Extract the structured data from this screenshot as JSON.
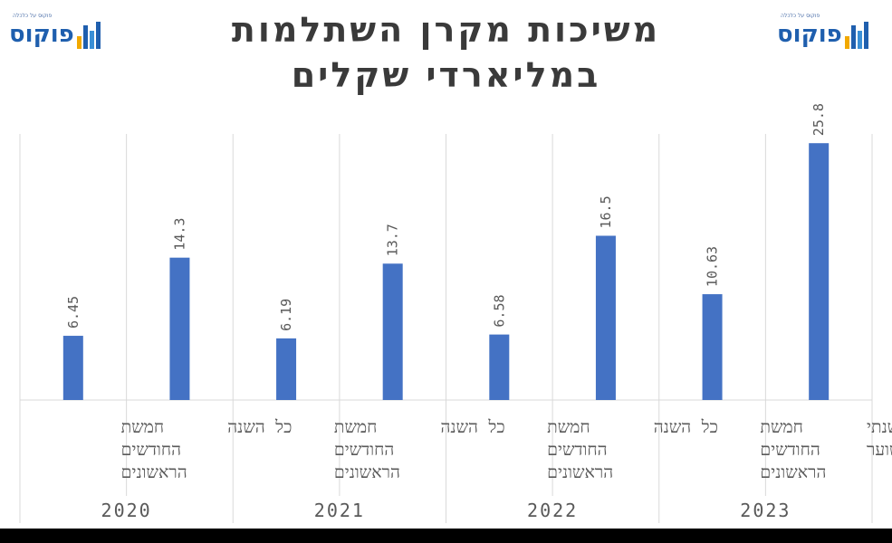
{
  "title": "משיכות מקרן השתלמות במליארדי שקלים",
  "logo": {
    "text": "פוקוס",
    "tagline": "פוקוס על כלכלה"
  },
  "colors": {
    "bar": "#4472c4",
    "title": "#3a3a3a",
    "gridline": "#d9d9d9",
    "logo": "#1f5fae"
  },
  "chart_data": {
    "type": "bar",
    "orientation": "vertical",
    "direction": "rtl",
    "ylim": [
      0,
      30
    ],
    "grid": false,
    "legend": "none",
    "groups": [
      {
        "year": "2023",
        "items": [
          {
            "label_lines": [
              "קצב שנתי",
              "משוער"
            ],
            "value": 25.8,
            "value_label": "25.8"
          },
          {
            "label_lines": [
              "חמשת",
              "החודשים",
              "הראשונים"
            ],
            "value": 10.63,
            "value_label": "10.63"
          }
        ]
      },
      {
        "year": "2022",
        "items": [
          {
            "label_lines": [
              "כל השנה"
            ],
            "value": 16.5,
            "value_label": "16.5"
          },
          {
            "label_lines": [
              "חמשת",
              "החודשים",
              "הראשונים"
            ],
            "value": 6.58,
            "value_label": "6.58"
          }
        ]
      },
      {
        "year": "2021",
        "items": [
          {
            "label_lines": [
              "כל השנה"
            ],
            "value": 13.7,
            "value_label": "13.7"
          },
          {
            "label_lines": [
              "חמשת",
              "החודשים",
              "הראשונים"
            ],
            "value": 6.19,
            "value_label": "6.19"
          }
        ]
      },
      {
        "year": "2020",
        "items": [
          {
            "label_lines": [
              "כל השנה"
            ],
            "value": 14.3,
            "value_label": "14.3"
          },
          {
            "label_lines": [
              "חמשת",
              "החודשים",
              "הראשונים"
            ],
            "value": 6.45,
            "value_label": "6.45"
          }
        ]
      }
    ]
  }
}
